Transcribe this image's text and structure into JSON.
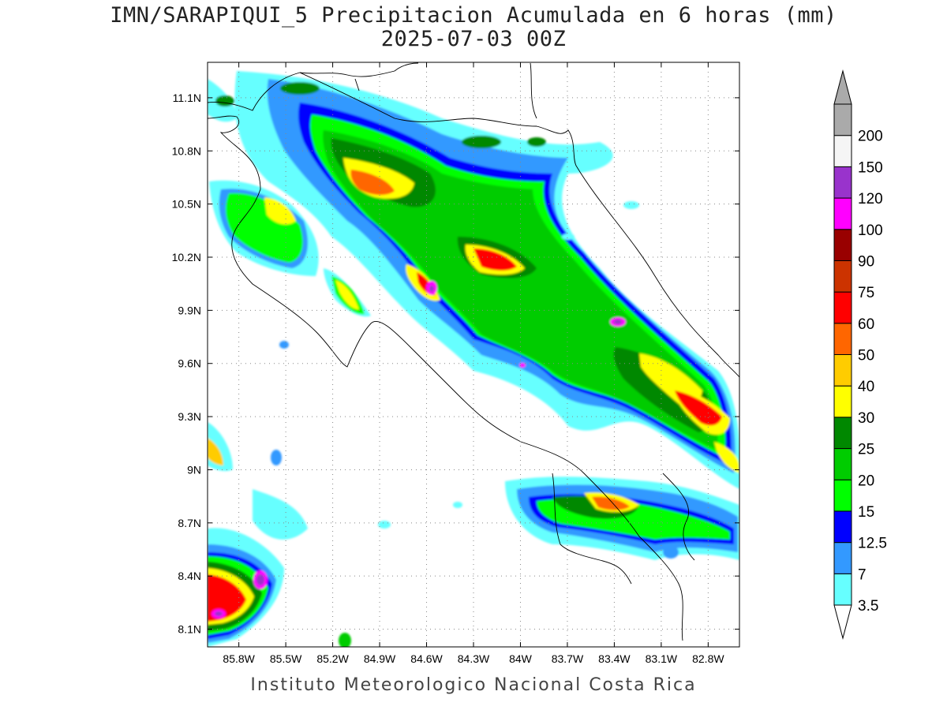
{
  "header": {
    "title": "IMN/SARAPIQUI_5 Precipitacion Acumulada en 6 horas (mm)",
    "subtitle": "2025-07-03 00Z"
  },
  "footer": {
    "credit": "Instituto Meteorologico Nacional Costa Rica"
  },
  "map": {
    "lon_range": [
      -86.0,
      -82.6
    ],
    "lat_range": [
      8.0,
      11.3
    ],
    "lat_ticks": [
      {
        "value": 11.1,
        "label": "11.1N"
      },
      {
        "value": 10.8,
        "label": "10.8N"
      },
      {
        "value": 10.5,
        "label": "10.5N"
      },
      {
        "value": 10.2,
        "label": "10.2N"
      },
      {
        "value": 9.9,
        "label": "9.9N"
      },
      {
        "value": 9.6,
        "label": "9.6N"
      },
      {
        "value": 9.3,
        "label": "9.3N"
      },
      {
        "value": 9.0,
        "label": "9N"
      },
      {
        "value": 8.7,
        "label": "8.7N"
      },
      {
        "value": 8.4,
        "label": "8.4N"
      },
      {
        "value": 8.1,
        "label": "8.1N"
      }
    ],
    "lon_ticks": [
      {
        "value": -85.8,
        "label": "85.8W"
      },
      {
        "value": -85.5,
        "label": "85.5W"
      },
      {
        "value": -85.2,
        "label": "85.2W"
      },
      {
        "value": -84.9,
        "label": "84.9W"
      },
      {
        "value": -84.6,
        "label": "84.6W"
      },
      {
        "value": -84.3,
        "label": "84.3W"
      },
      {
        "value": -84.0,
        "label": "84W"
      },
      {
        "value": -83.7,
        "label": "83.7W"
      },
      {
        "value": -83.4,
        "label": "83.4W"
      },
      {
        "value": -83.1,
        "label": "83.1W"
      },
      {
        "value": -82.8,
        "label": "82.8W"
      }
    ],
    "grid": "dotted"
  },
  "colorbar": {
    "levels": [
      {
        "label": "3.5",
        "color": "#66ffff"
      },
      {
        "label": "7",
        "color": "#3399ff"
      },
      {
        "label": "12.5",
        "color": "#0000ff"
      },
      {
        "label": "15",
        "color": "#00ff00"
      },
      {
        "label": "20",
        "color": "#00cc00"
      },
      {
        "label": "25",
        "color": "#008800"
      },
      {
        "label": "30",
        "color": "#ffff00"
      },
      {
        "label": "40",
        "color": "#ffcc00"
      },
      {
        "label": "50",
        "color": "#ff6600"
      },
      {
        "label": "60",
        "color": "#ff0000"
      },
      {
        "label": "75",
        "color": "#cc3300"
      },
      {
        "label": "90",
        "color": "#990000"
      },
      {
        "label": "100",
        "color": "#ff00ff"
      },
      {
        "label": "120",
        "color": "#9933cc"
      },
      {
        "label": "150",
        "color": "#f5f5f5"
      },
      {
        "label": "200",
        "color": "#aaaaaa"
      }
    ],
    "under_color": "#ffffff",
    "over_color": "#aaaaaa"
  }
}
